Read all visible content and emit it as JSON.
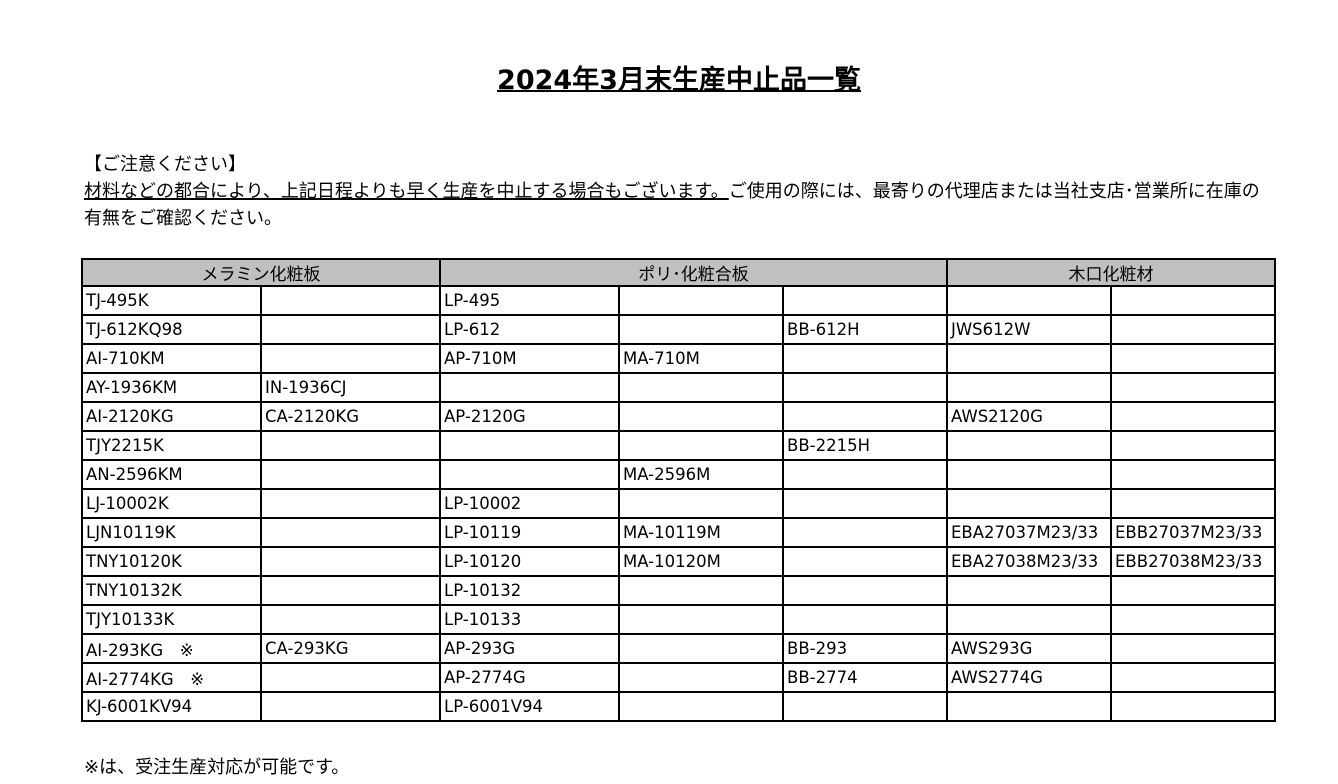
{
  "title": "2024年3月末生産中止品一覧",
  "notice": {
    "heading": "【ご注意ください】",
    "underlined": "材料などの都合により、上記日程よりも早く生産を中止する場合もございます。",
    "rest": "ご使用の際には、最寄りの代理店または当社支店･営業所に在庫の有無をご確認ください。"
  },
  "table": {
    "headers": [
      "メラミン化粧板",
      "ポリ･化粧合板",
      "木口化粧材"
    ],
    "rows": [
      [
        "TJ-495K",
        "",
        "LP-495",
        "",
        "",
        "",
        ""
      ],
      [
        "TJ-612KQ98",
        "",
        "LP-612",
        "",
        "BB-612H",
        "JWS612W",
        ""
      ],
      [
        "AI-710KM",
        "",
        "AP-710M",
        "MA-710M",
        "",
        "",
        ""
      ],
      [
        "AY-1936KM",
        "IN-1936CJ",
        "",
        "",
        "",
        "",
        ""
      ],
      [
        "AI-2120KG",
        "CA-2120KG",
        "AP-2120G",
        "",
        "",
        "AWS2120G",
        ""
      ],
      [
        "TJY2215K",
        "",
        "",
        "",
        "BB-2215H",
        "",
        ""
      ],
      [
        "AN-2596KM",
        "",
        "",
        "MA-2596M",
        "",
        "",
        ""
      ],
      [
        "LJ-10002K",
        "",
        "LP-10002",
        "",
        "",
        "",
        ""
      ],
      [
        "LJN10119K",
        "",
        "LP-10119",
        "MA-10119M",
        "",
        "EBA27037M23/33",
        "EBB27037M23/33"
      ],
      [
        "TNY10120K",
        "",
        "LP-10120",
        "MA-10120M",
        "",
        "EBA27038M23/33",
        "EBB27038M23/33"
      ],
      [
        "TNY10132K",
        "",
        "LP-10132",
        "",
        "",
        "",
        ""
      ],
      [
        "TJY10133K",
        "",
        "LP-10133",
        "",
        "",
        "",
        ""
      ],
      [
        "AI-293KG　※",
        "CA-293KG",
        "AP-293G",
        "",
        "BB-293",
        "AWS293G",
        ""
      ],
      [
        "AI-2774KG　※",
        "",
        "AP-2774G",
        "",
        "BB-2774",
        "AWS2774G",
        ""
      ],
      [
        "KJ-6001KV94",
        "",
        "LP-6001V94",
        "",
        "",
        "",
        ""
      ]
    ]
  },
  "footnote": "※は、受注生産対応が可能です。"
}
